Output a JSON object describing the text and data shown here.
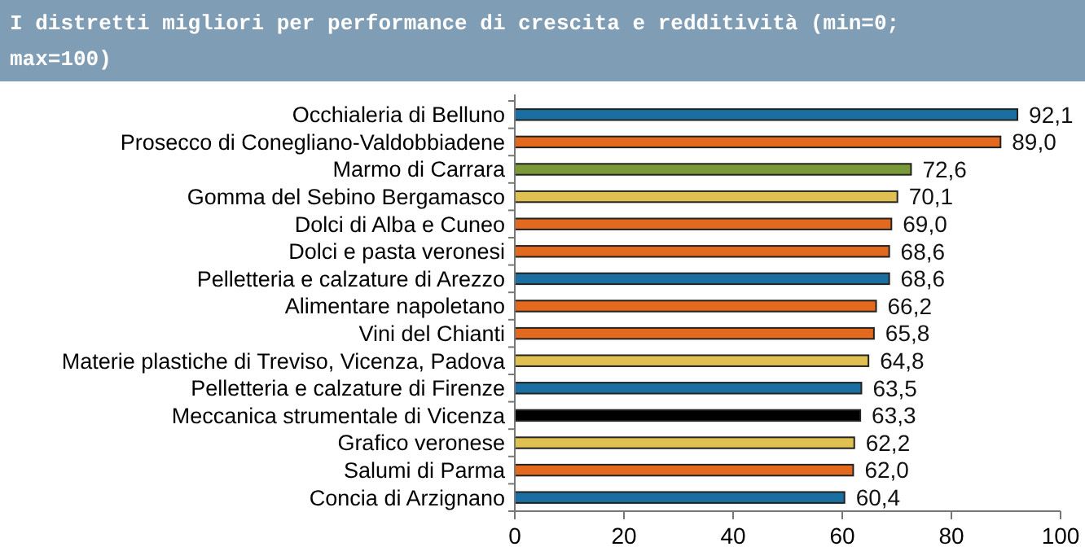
{
  "chart_data": {
    "type": "bar",
    "orientation": "horizontal",
    "title": "I distretti migliori per performance di crescita e redditività (min=0; max=100)",
    "categories": [
      "Occhialeria di Belluno",
      "Prosecco di Conegliano-Valdobbiadene",
      "Marmo di Carrara",
      "Gomma del Sebino Bergamasco",
      "Dolci di Alba e Cuneo",
      "Dolci e pasta veronesi",
      "Pelletteria e calzature di Arezzo",
      "Alimentare napoletano",
      "Vini del Chianti",
      "Materie plastiche di Treviso, Vicenza, Padova",
      "Pelletteria e calzature di Firenze",
      "Meccanica strumentale di Vicenza",
      "Grafico veronese",
      "Salumi di Parma",
      "Concia di Arzignano"
    ],
    "values": [
      92.1,
      89.0,
      72.6,
      70.1,
      69.0,
      68.6,
      68.6,
      66.2,
      65.8,
      64.8,
      63.5,
      63.3,
      62.2,
      62.0,
      60.4
    ],
    "value_labels": [
      "92,1",
      "89,0",
      "72,6",
      "70,1",
      "69,0",
      "68,6",
      "68,6",
      "66,2",
      "65,8",
      "64,8",
      "63,5",
      "63,3",
      "62,2",
      "62,0",
      "60,4"
    ],
    "colors": [
      "#1a6ea0",
      "#e2691e",
      "#7a9a3a",
      "#e0c050",
      "#e2691e",
      "#e2691e",
      "#1a6ea0",
      "#e2691e",
      "#e2691e",
      "#e0c050",
      "#1a6ea0",
      "#000000",
      "#e0c050",
      "#e2691e",
      "#1a6ea0"
    ],
    "xlim": [
      0,
      100
    ],
    "xticks": [
      0,
      20,
      40,
      60,
      80,
      100
    ],
    "grid": false
  }
}
